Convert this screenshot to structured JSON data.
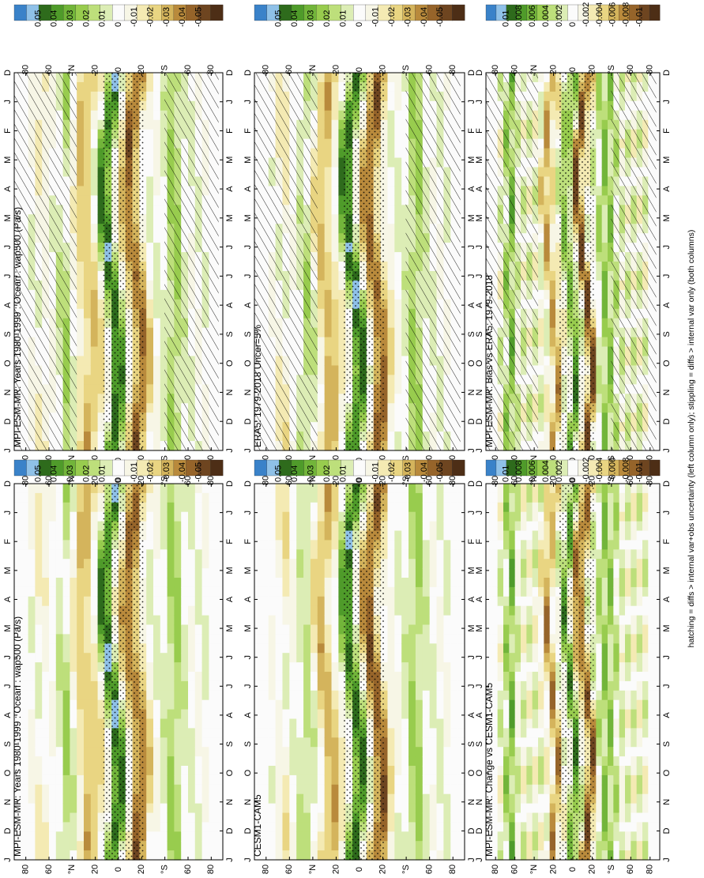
{
  "footer_note": "hatching = diffs > internal var+obs uncertainty (left column only); stippling = diffs > internal var only (both columns)",
  "palette": [
    "#3a82c9",
    "#8fc1e8",
    "#2e6b1c",
    "#4f9b2a",
    "#72b53a",
    "#98cc4e",
    "#bddf7b",
    "#dcedb5",
    "#fbfbfb",
    "#f7f6e6",
    "#f4eab3",
    "#e9d582",
    "#d4b45c",
    "#b98a3c",
    "#96642a",
    "#6e4520",
    "#4d2e16"
  ],
  "row_labels": [
    "D",
    "J",
    "F",
    "M",
    "A",
    "M",
    "J",
    "J",
    "A",
    "S",
    "O",
    "N",
    "D",
    "J"
  ],
  "lat_labels": [
    "80",
    "60",
    "°N",
    "20",
    "0",
    "20",
    "°S",
    "60",
    "80"
  ],
  "chart_data": [
    {
      "type": "heatmap",
      "title": "MPI-ESM-MR: Years 1980-1999 : Ocean : wap500 (Pa/s)",
      "colorbar_labels": [
        "0.05",
        "0.04",
        "0.03",
        "0.02",
        "0.01",
        "0",
        "-0.01",
        "-0.02",
        "-0.03",
        "-0.04",
        "-0.05"
      ],
      "hatching": true,
      "stippling": true
    },
    {
      "type": "heatmap",
      "title": "MPI-ESM-MR: Years 1980-1999 : Ocean : wap500 (Pa/s)",
      "colorbar_labels": [
        "0.05",
        "0.04",
        "0.03",
        "0.02",
        "0.01",
        "0",
        "-0.01",
        "-0.02",
        "-0.03",
        "-0.04",
        "-0.05"
      ],
      "hatching": false,
      "stippling": true
    },
    {
      "type": "heatmap",
      "title": "ERA5: 1979-2018 Uncer=5%",
      "colorbar_labels": [
        "0.05",
        "0.04",
        "0.03",
        "0.02",
        "0.01",
        "0",
        "-0.01",
        "-0.02",
        "-0.03",
        "-0.04",
        "-0.05"
      ],
      "hatching": true,
      "stippling": true
    },
    {
      "type": "heatmap",
      "title": "CESM1-CAM5",
      "colorbar_labels": [
        "0.05",
        "0.04",
        "0.03",
        "0.02",
        "0.01",
        "0",
        "-0.01",
        "-0.02",
        "-0.03",
        "-0.04",
        "-0.05"
      ],
      "hatching": false,
      "stippling": true
    },
    {
      "type": "heatmap",
      "title": "MPI-ESM-MR: Bias vs ERA5: 1979-2018",
      "colorbar_labels": [
        "0.01",
        "0.008",
        "0.006",
        "0.004",
        "0.002",
        "0",
        "-0.002",
        "-0.004",
        "-0.006",
        "-0.008",
        "-0.01"
      ],
      "hatching": true,
      "stippling": true,
      "diff": true
    },
    {
      "type": "heatmap",
      "title": "MPI-ESM-MR: Change vs CESM1-CAM5",
      "colorbar_labels": [
        "0.01",
        "0.008",
        "0.006",
        "0.004",
        "0.002",
        "0",
        "-0.002",
        "-0.004",
        "-0.006",
        "-0.008",
        "-0.01"
      ],
      "hatching": false,
      "stippling": true,
      "diff": true
    }
  ]
}
